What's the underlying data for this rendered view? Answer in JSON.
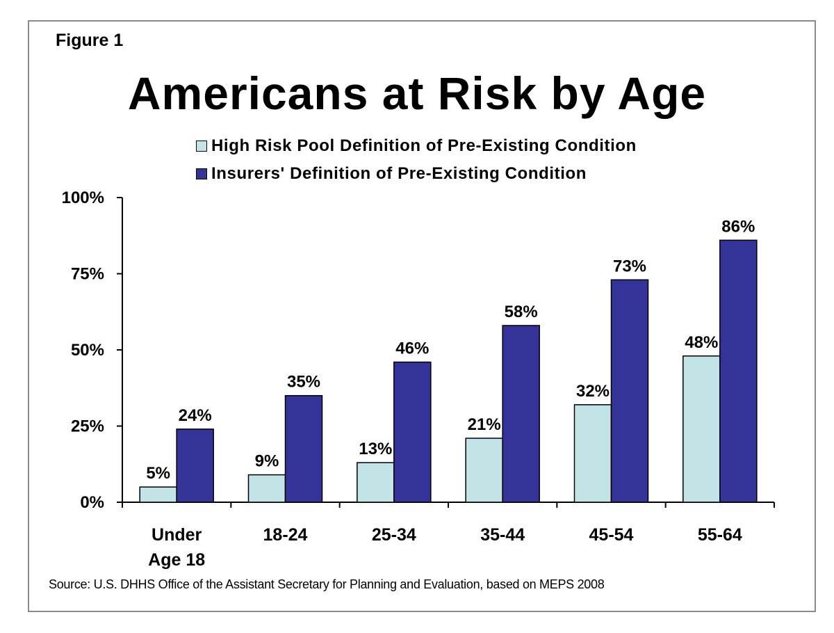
{
  "figure_label": "Figure 1",
  "chart_data": {
    "type": "bar",
    "title": "Americans at Risk by Age",
    "categories": [
      [
        "Under",
        "Age 18"
      ],
      [
        "18-24"
      ],
      [
        "25-34"
      ],
      [
        "35-44"
      ],
      [
        "45-54"
      ],
      [
        "55-64"
      ]
    ],
    "series": [
      {
        "name": "High Risk Pool Definition of Pre-Existing Condition",
        "color": "#c2e4e6",
        "values": [
          5,
          9,
          13,
          21,
          32,
          48
        ],
        "labels": [
          "5%",
          "9%",
          "13%",
          "21%",
          "32%",
          "48%"
        ]
      },
      {
        "name": "Insurers' Definition of Pre-Existing Condition",
        "color": "#333399",
        "values": [
          24,
          35,
          46,
          58,
          73,
          86
        ],
        "labels": [
          "24%",
          "35%",
          "46%",
          "58%",
          "73%",
          "86%"
        ]
      }
    ],
    "yticks": [
      0,
      25,
      50,
      75,
      100
    ],
    "ytick_labels": [
      "0%",
      "25%",
      "50%",
      "75%",
      "100%"
    ],
    "ylim": [
      0,
      100
    ],
    "grid": false,
    "legend_position": "top"
  },
  "source": "Source: U.S. DHHS Office of the Assistant Secretary for Planning and Evaluation, based on MEPS 2008"
}
